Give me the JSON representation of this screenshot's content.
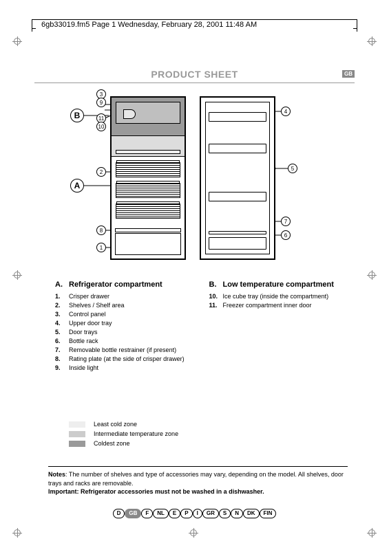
{
  "header_line": "6gb33019.fm5  Page 1  Wednesday, February 28, 2001  11:48 AM",
  "title": "PRODUCT SHEET",
  "badge": "GB",
  "sections": {
    "A": {
      "letter": "A.",
      "title": "Refrigerator compartment",
      "items": [
        {
          "n": "1.",
          "t": "Crisper drawer"
        },
        {
          "n": "2.",
          "t": "Shelves / Shelf area"
        },
        {
          "n": "3.",
          "t": "Control panel"
        },
        {
          "n": "4.",
          "t": "Upper door tray"
        },
        {
          "n": "5.",
          "t": "Door trays"
        },
        {
          "n": "6.",
          "t": "Bottle rack"
        },
        {
          "n": "7.",
          "t": "Removable bottle restrainer (if present)"
        },
        {
          "n": "8.",
          "t": "Rating plate (at the side of crisper drawer)"
        },
        {
          "n": "9.",
          "t": "Inside light"
        }
      ]
    },
    "B": {
      "letter": "B.",
      "title": "Low temperature compartment",
      "items": [
        {
          "n": "10.",
          "t": "Ice cube tray (inside the compartment)"
        },
        {
          "n": "11.",
          "t": "Freezer compartment inner door"
        }
      ]
    }
  },
  "legend": [
    {
      "color": "#eeeeee",
      "label": "Least cold zone"
    },
    {
      "color": "#cccccc",
      "label": "Intermediate temperature zone"
    },
    {
      "color": "#9a9a9a",
      "label": "Coldest zone"
    }
  ],
  "notes_label": "Notes",
  "notes_text": ": The number of shelves and type of accessories may vary, depending on the model. All shelves, door trays and racks are removable.",
  "important_label": "Important",
  "important_text": ": Refrigerator accessories must not be washed in a dishwasher.",
  "languages": [
    "D",
    "GB",
    "F",
    "NL",
    "E",
    "P",
    "I",
    "GR",
    "S",
    "N",
    "DK",
    "FIN"
  ],
  "active_lang": "GB",
  "callout_labels": {
    "n1": "1",
    "n2": "2",
    "n3": "3",
    "n4": "4",
    "n5": "5",
    "n6": "6",
    "n7": "7",
    "n8": "8",
    "n9": "9",
    "n10": "10",
    "n11": "11",
    "A": "A",
    "B": "B"
  }
}
